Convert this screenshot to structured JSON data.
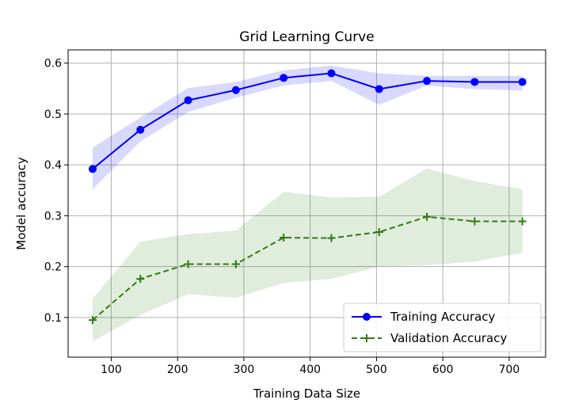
{
  "chart_data": {
    "type": "line",
    "title": "Grid Learning Curve",
    "xlabel": "Training Data Size",
    "ylabel": "Model accuracy",
    "xlim": [
      35,
      755
    ],
    "ylim": [
      0.022,
      0.626
    ],
    "xticks": [
      100,
      200,
      300,
      400,
      500,
      600,
      700
    ],
    "yticks": [
      0.1,
      0.2,
      0.3,
      0.4,
      0.5,
      0.6
    ],
    "grid": true,
    "legend_position": "lower-right",
    "x": [
      72,
      144,
      216,
      288,
      360,
      432,
      504,
      576,
      648,
      720
    ],
    "series": [
      {
        "name": "Training Accuracy",
        "color": "#0000ff",
        "line_style": "solid",
        "marker": "circle",
        "values": [
          0.392,
          0.469,
          0.527,
          0.547,
          0.571,
          0.58,
          0.549,
          0.565,
          0.563,
          0.563
        ],
        "band_lower": [
          0.352,
          0.446,
          0.504,
          0.532,
          0.556,
          0.565,
          0.518,
          0.556,
          0.549,
          0.546
        ],
        "band_upper": [
          0.434,
          0.493,
          0.551,
          0.563,
          0.586,
          0.595,
          0.58,
          0.575,
          0.575,
          0.575
        ]
      },
      {
        "name": "Validation Accuracy",
        "color": "#2e7d12",
        "line_style": "dashed",
        "marker": "plus",
        "values": [
          0.095,
          0.176,
          0.205,
          0.205,
          0.257,
          0.256,
          0.268,
          0.298,
          0.289,
          0.289
        ],
        "band_lower": [
          0.053,
          0.105,
          0.146,
          0.139,
          0.168,
          0.176,
          0.2,
          0.203,
          0.21,
          0.227
        ],
        "band_upper": [
          0.137,
          0.249,
          0.264,
          0.271,
          0.347,
          0.336,
          0.337,
          0.393,
          0.368,
          0.352
        ]
      }
    ]
  }
}
